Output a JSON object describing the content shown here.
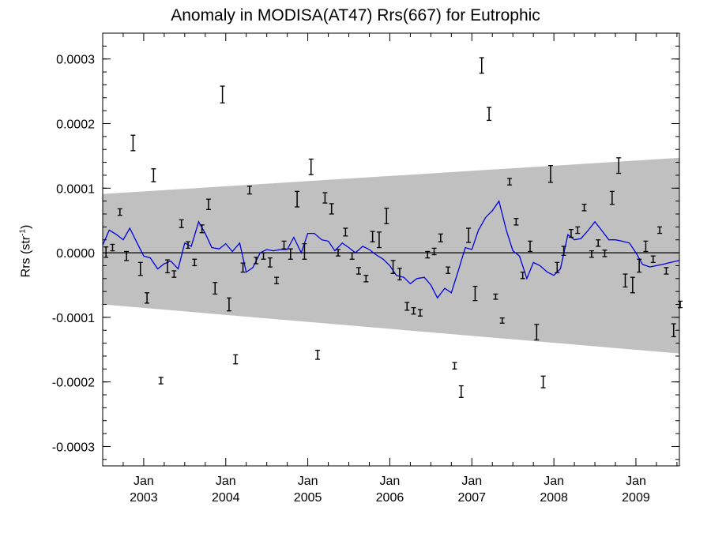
{
  "chart_data": {
    "type": "line",
    "title": "Anomaly in MODISA(AT47) Rrs(667) for Eutrophic",
    "ylabel_main": "Rrs (str",
    "ylabel_sup": "-1",
    "ylabel_close": ")",
    "xlim": [
      2002.5,
      2009.53
    ],
    "ylim": [
      -0.00033,
      0.00034
    ],
    "yticks": [
      -0.0003,
      -0.0002,
      -0.0001,
      0.0,
      0.0001,
      0.0002,
      0.0003
    ],
    "ytick_labels": [
      "-0.0003",
      "-0.0002",
      "-0.0001",
      "0.0000",
      "0.0001",
      "0.0002",
      "0.0003"
    ],
    "xticks": [
      {
        "x": 2003,
        "month": "Jan",
        "year": "2003"
      },
      {
        "x": 2004,
        "month": "Jan",
        "year": "2004"
      },
      {
        "x": 2005,
        "month": "Jan",
        "year": "2005"
      },
      {
        "x": 2006,
        "month": "Jan",
        "year": "2006"
      },
      {
        "x": 2007,
        "month": "Jan",
        "year": "2007"
      },
      {
        "x": 2008,
        "month": "Jan",
        "year": "2008"
      },
      {
        "x": 2009,
        "month": "Jan",
        "year": "2009"
      }
    ],
    "band": {
      "x": [
        2002.5,
        2009.53
      ],
      "upper": [
        9.1e-05,
        0.000147
      ],
      "lower": [
        -8e-05,
        -0.000156
      ],
      "color": "#c0c0c0"
    },
    "zero_line": 0.0,
    "series": [
      {
        "kind": "errorbar",
        "color": "#000000",
        "x": [
          2002.54,
          2002.62,
          2002.71,
          2002.79,
          2002.87,
          2002.96,
          2003.04,
          2003.12,
          2003.21,
          2003.29,
          2003.37,
          2003.46,
          2003.54,
          2003.62,
          2003.71,
          2003.79,
          2003.87,
          2003.96,
          2004.04,
          2004.12,
          2004.21,
          2004.29,
          2004.37,
          2004.46,
          2004.54,
          2004.62,
          2004.71,
          2004.79,
          2004.87,
          2004.96,
          2005.04,
          2005.12,
          2005.21,
          2005.29,
          2005.37,
          2005.46,
          2005.54,
          2005.62,
          2005.71,
          2005.79,
          2005.87,
          2005.96,
          2006.04,
          2006.12,
          2006.21,
          2006.29,
          2006.37,
          2006.46,
          2006.54,
          2006.62,
          2006.71,
          2006.79,
          2006.87,
          2006.96,
          2007.04,
          2007.12,
          2007.21,
          2007.29,
          2007.37,
          2007.46,
          2007.54,
          2007.62,
          2007.71,
          2007.79,
          2007.87,
          2007.96,
          2008.04,
          2008.12,
          2008.21,
          2008.29,
          2008.37,
          2008.46,
          2008.54,
          2008.62,
          2008.71,
          2008.79,
          2008.87,
          2008.96,
          2009.04,
          2009.12,
          2009.21,
          2009.29,
          2009.37,
          2009.46,
          2009.54
        ],
        "y": [
          1e-06,
          8e-06,
          6.3e-05,
          -5e-06,
          0.00017,
          -2.5e-05,
          -7e-05,
          0.00012,
          -0.000198,
          -2.1e-05,
          -3.3e-05,
          4.5e-05,
          1.2e-05,
          -1.5e-05,
          3.7e-05,
          7.5e-05,
          -5.5e-05,
          0.000245,
          -8e-05,
          -0.000165,
          -2.3e-05,
          9.7e-05,
          -1.2e-05,
          -5e-06,
          -1.5e-05,
          -4.3e-05,
          1.2e-05,
          -2e-06,
          8.3e-05,
          2e-06,
          0.000133,
          -0.000158,
          8.5e-05,
          6.8e-05,
          0.0,
          3.2e-05,
          -5e-06,
          -2.8e-05,
          -4e-05,
          2.5e-05,
          2e-05,
          5.7e-05,
          -2.2e-05,
          -3.3e-05,
          -8.3e-05,
          -9e-05,
          -9.3e-05,
          -3e-06,
          2e-06,
          2.3e-05,
          -2.7e-05,
          -0.000175,
          -0.000215,
          2.7e-05,
          -6.3e-05,
          0.00029,
          0.000215,
          -6.8e-05,
          -0.000105,
          0.00011,
          4.8e-05,
          -3.5e-05,
          1e-05,
          -0.000123,
          -0.0002,
          0.000122,
          -2.3e-05,
          3e-06,
          3e-05,
          3.5e-05,
          7e-05,
          -2e-06,
          1.5e-05,
          -1e-06,
          8.5e-05,
          0.000135,
          -4.3e-05,
          -5e-05,
          -2e-05,
          1e-05,
          -1e-05,
          3.5e-05,
          -2.8e-05,
          -0.00012,
          -8e-05
        ],
        "err": [
          8e-06,
          5e-06,
          5e-06,
          7e-06,
          1.2e-05,
          1e-05,
          8e-06,
          1e-05,
          5e-06,
          1e-05,
          5e-06,
          6e-06,
          5e-06,
          5e-06,
          6e-06,
          8e-06,
          9e-06,
          1.3e-05,
          1e-05,
          7e-06,
          7e-06,
          6e-06,
          5e-06,
          5e-06,
          7e-06,
          5e-06,
          6e-06,
          8e-06,
          1.2e-05,
          1.2e-05,
          1.2e-05,
          7e-06,
          8e-06,
          8e-06,
          5e-06,
          6e-06,
          5e-06,
          5e-06,
          5e-06,
          8e-06,
          1.2e-05,
          1.2e-05,
          1e-05,
          9e-06,
          6e-06,
          5e-06,
          5e-06,
          5e-06,
          5e-06,
          6e-06,
          5e-06,
          5e-06,
          9e-06,
          1.1e-05,
          1.1e-05,
          1.2e-05,
          1e-05,
          4e-06,
          4e-06,
          5e-06,
          5e-06,
          5e-06,
          8e-06,
          1.2e-05,
          9e-06,
          1.3e-05,
          8e-06,
          7e-06,
          6e-06,
          5e-06,
          5e-06,
          5e-06,
          5e-06,
          5e-06,
          1e-05,
          1.2e-05,
          1e-05,
          1.2e-05,
          1e-05,
          8e-06,
          5e-06,
          5e-06,
          5e-06,
          1e-05,
          5e-06
        ]
      },
      {
        "kind": "line",
        "color": "#0000e0",
        "x": [
          2002.5,
          2002.58,
          2002.67,
          2002.75,
          2002.83,
          2002.92,
          2003.0,
          2003.08,
          2003.17,
          2003.25,
          2003.33,
          2003.42,
          2003.5,
          2003.58,
          2003.67,
          2003.75,
          2003.83,
          2003.92,
          2004.0,
          2004.08,
          2004.17,
          2004.25,
          2004.33,
          2004.42,
          2004.5,
          2004.58,
          2004.67,
          2004.75,
          2004.83,
          2004.92,
          2005.0,
          2005.08,
          2005.17,
          2005.25,
          2005.33,
          2005.42,
          2005.5,
          2005.58,
          2005.67,
          2005.75,
          2005.83,
          2005.92,
          2006.0,
          2006.08,
          2006.17,
          2006.25,
          2006.33,
          2006.42,
          2006.5,
          2006.58,
          2006.67,
          2006.75,
          2006.83,
          2006.92,
          2007.0,
          2007.08,
          2007.17,
          2007.25,
          2007.33,
          2007.42,
          2007.5,
          2007.58,
          2007.67,
          2007.75,
          2007.83,
          2007.92,
          2008.0,
          2008.08,
          2008.17,
          2008.25,
          2008.33,
          2008.42,
          2008.5,
          2008.58,
          2008.67,
          2008.75,
          2008.83,
          2008.92,
          2009.0,
          2009.08,
          2009.17,
          2009.25,
          2009.33,
          2009.42,
          2009.53
        ],
        "y": [
          1.2e-05,
          3.5e-05,
          2.8e-05,
          2e-05,
          3.8e-05,
          1.5e-05,
          -5e-06,
          -8e-06,
          -2.5e-05,
          -1.7e-05,
          -1.3e-05,
          -2.5e-05,
          1.5e-05,
          1e-05,
          4.8e-05,
          3e-05,
          8e-06,
          6e-06,
          1.4e-05,
          2e-06,
          1.5e-05,
          -3e-05,
          -2.3e-05,
          0.0,
          5e-06,
          3e-06,
          5e-06,
          5e-06,
          2.4e-05,
          0.0,
          3e-05,
          3e-05,
          2e-05,
          1.8e-05,
          3e-06,
          1.5e-05,
          8e-06,
          0.0,
          1e-05,
          5e-06,
          -3e-06,
          -1e-05,
          -2e-05,
          -3.5e-05,
          -3.8e-05,
          -4.8e-05,
          -4e-05,
          -3.8e-05,
          -5e-05,
          -7e-05,
          -5.5e-05,
          -6.2e-05,
          -3e-05,
          8e-06,
          5e-06,
          3.5e-05,
          5.5e-05,
          6.5e-05,
          8e-05,
          3.5e-05,
          3e-06,
          -5e-06,
          -4e-05,
          -1.5e-05,
          -2e-05,
          -3e-05,
          -3.5e-05,
          -2.5e-05,
          2.8e-05,
          2e-05,
          2.2e-05,
          3.5e-05,
          4.8e-05,
          3.5e-05,
          2e-05,
          2e-05,
          1.8e-05,
          1.5e-05,
          0.0,
          -1.8e-05,
          -2.2e-05,
          -2e-05,
          -1.8e-05,
          -1.5e-05,
          -1.2e-05
        ]
      }
    ]
  }
}
